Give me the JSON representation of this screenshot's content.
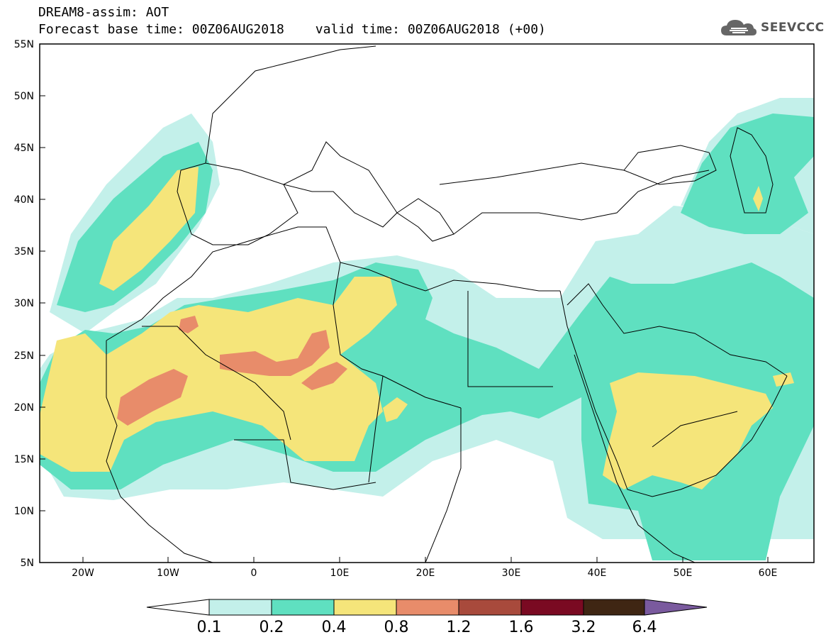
{
  "header": {
    "model": "DREAM8-assim: AOT",
    "base_time": "Forecast base time: 00Z06AUG2018",
    "valid_time": "valid time: 00Z06AUG2018 (+00)"
  },
  "logo": {
    "text": "SEEVCCC",
    "icon": "cloud-icon"
  },
  "map": {
    "lat_labels": [
      "55N",
      "50N",
      "45N",
      "40N",
      "35N",
      "30N",
      "25N",
      "20N",
      "15N",
      "10N",
      "5N"
    ],
    "lon_labels": [
      "20W",
      "10W",
      "0",
      "10E",
      "20E",
      "30E",
      "40E",
      "50E",
      "60E"
    ]
  },
  "colorbar": {
    "labels": [
      "0.1",
      "0.2",
      "0.4",
      "0.8",
      "1.2",
      "1.6",
      "3.2",
      "6.4"
    ],
    "colors": {
      "c1": "#c3f0ea",
      "c2": "#5fe0c0",
      "c3": "#f5e57a",
      "c4": "#e88c6a",
      "c5": "#a84a3c",
      "c6": "#7a0a22",
      "c7": "#3f2613",
      "c8": "#7a5a9e"
    }
  }
}
